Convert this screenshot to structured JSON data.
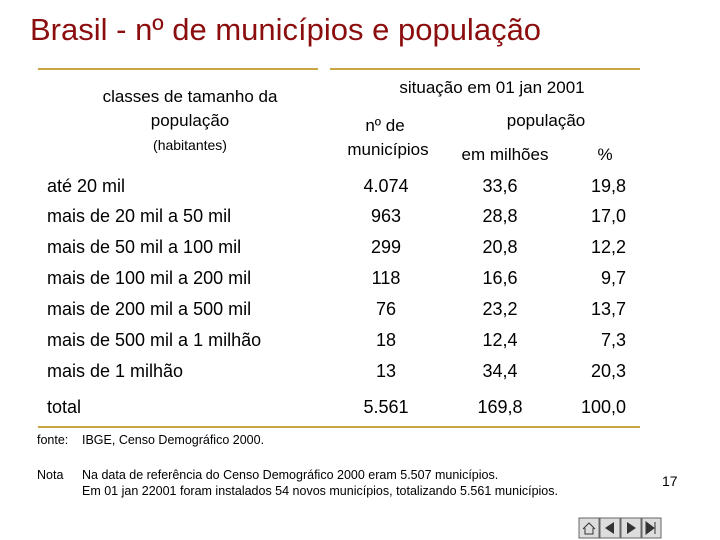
{
  "header": {
    "title": "Brasil - nº de municípios e população"
  },
  "table": {
    "head": {
      "classes": [
        "classes de tamanho da",
        "população"
      ],
      "unit": "(habitantes)",
      "situation": "situação em 01 jan 2001",
      "municipalities": [
        "nº de",
        "municípios"
      ],
      "population": "população",
      "millions": "em milhões",
      "percent": "%"
    },
    "rows": [
      [
        "até 20 mil",
        "4.074",
        "33,6",
        "19,8"
      ],
      [
        "mais de 20 mil a 50 mil",
        "963",
        "28,8",
        "17,0"
      ],
      [
        "mais de 50 mil a 100 mil",
        "299",
        "20,8",
        "12,2"
      ],
      [
        "mais de 100 mil a 200 mil",
        "118",
        "16,6",
        "9,7"
      ],
      [
        "mais de 200 mil a 500 mil",
        "76",
        "23,2",
        "13,7"
      ],
      [
        "mais de 500 mil a 1 milhão",
        "18",
        "12,4",
        "7,3"
      ],
      [
        "mais de 1 milhão",
        "13",
        "34,4",
        "20,3"
      ]
    ],
    "total": [
      "total",
      "5.561",
      "169,8",
      "100,0"
    ]
  },
  "source": {
    "label": "fonte:",
    "text": "IBGE, Censo Demográfico 2000."
  },
  "note": {
    "label": "Nota",
    "lines": [
      "Na data de referência do Censo Demográfico 2000 eram 5.507 municípios.",
      "Em 01 jan 22001 foram instalados 54 novos municípios, totalizando 5.561 municípios."
    ]
  },
  "page_number": "17"
}
